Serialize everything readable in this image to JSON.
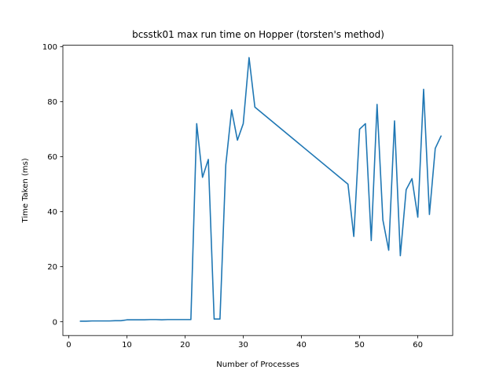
{
  "chart_data": {
    "type": "line",
    "title": "bcsstk01 max run time on Hopper (torsten's method)",
    "xlabel": "Number of Processes",
    "ylabel": "Time Taken (ms)",
    "xlim": [
      -1,
      66
    ],
    "ylim": [
      -5,
      100.5
    ],
    "xticks": [
      0,
      10,
      20,
      30,
      40,
      50,
      60
    ],
    "yticks": [
      0,
      20,
      40,
      60,
      80,
      100
    ],
    "grid": false,
    "legend": "none",
    "series": [
      {
        "color": "#1f77b4",
        "x": [
          2,
          3,
          4,
          5,
          6,
          7,
          8,
          9,
          10,
          11,
          12,
          13,
          14,
          15,
          16,
          17,
          18,
          19,
          20,
          21,
          22,
          23,
          24,
          25,
          26,
          27,
          28,
          29,
          30,
          31,
          32,
          48,
          49,
          50,
          51,
          52,
          53,
          54,
          55,
          56,
          57,
          58,
          59,
          60,
          61,
          62,
          63,
          64
        ],
        "y": [
          0.2,
          0.2,
          0.3,
          0.3,
          0.3,
          0.3,
          0.4,
          0.4,
          0.7,
          0.7,
          0.7,
          0.7,
          0.8,
          0.8,
          0.7,
          0.8,
          0.8,
          0.8,
          0.8,
          0.8,
          72,
          52.5,
          59,
          1,
          1,
          57,
          77,
          66,
          72,
          96,
          78,
          50,
          31,
          70,
          72,
          29.5,
          79,
          37,
          26,
          73,
          24,
          48,
          52,
          38,
          84.5,
          39,
          63,
          67.5
        ]
      }
    ]
  }
}
